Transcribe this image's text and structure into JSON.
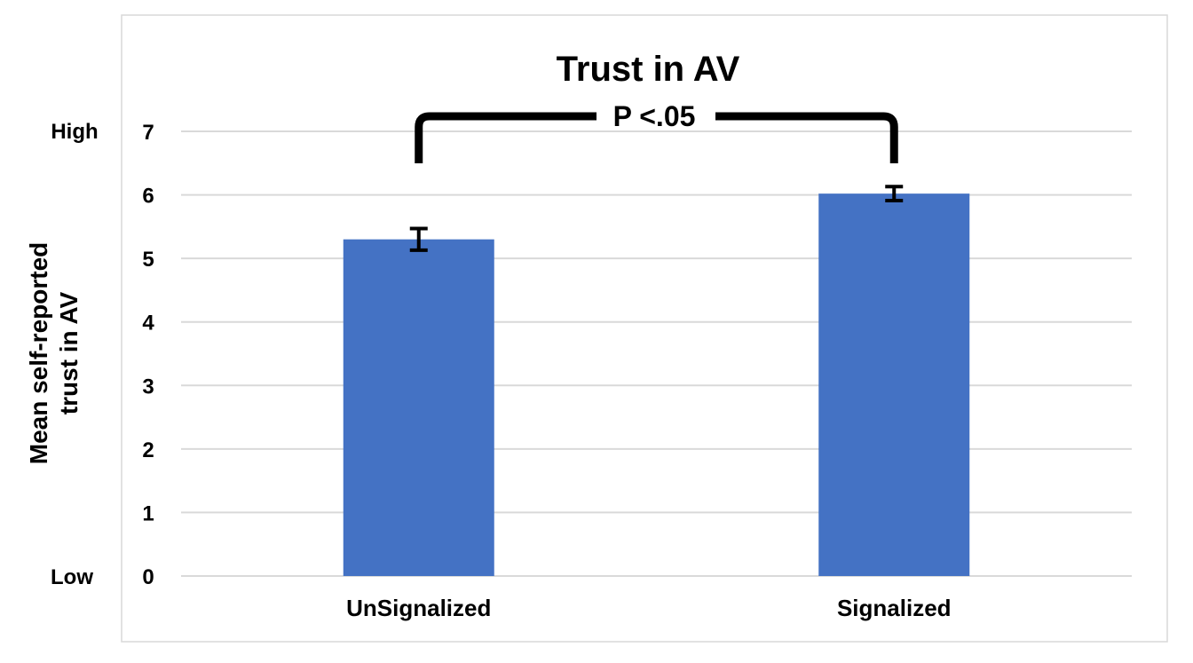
{
  "chart_data": {
    "type": "bar",
    "title": "Trust in AV",
    "ylabel_lines": [
      "Mean self-reported",
      "trust in AV"
    ],
    "categories": [
      "UnSignalized",
      "Signalized"
    ],
    "values": [
      5.3,
      6.02
    ],
    "error_bars": [
      0.17,
      0.11
    ],
    "ylim": [
      0,
      7
    ],
    "yticks": [
      "0",
      "1",
      "2",
      "3",
      "4",
      "5",
      "6",
      "7"
    ],
    "scale_labels": {
      "high": "High",
      "low": "Low"
    },
    "annotation": "P <.05",
    "grid": true,
    "colors": {
      "bar": "#4472C4",
      "grid": "#d9d9d9",
      "bracket": "#000000"
    }
  }
}
